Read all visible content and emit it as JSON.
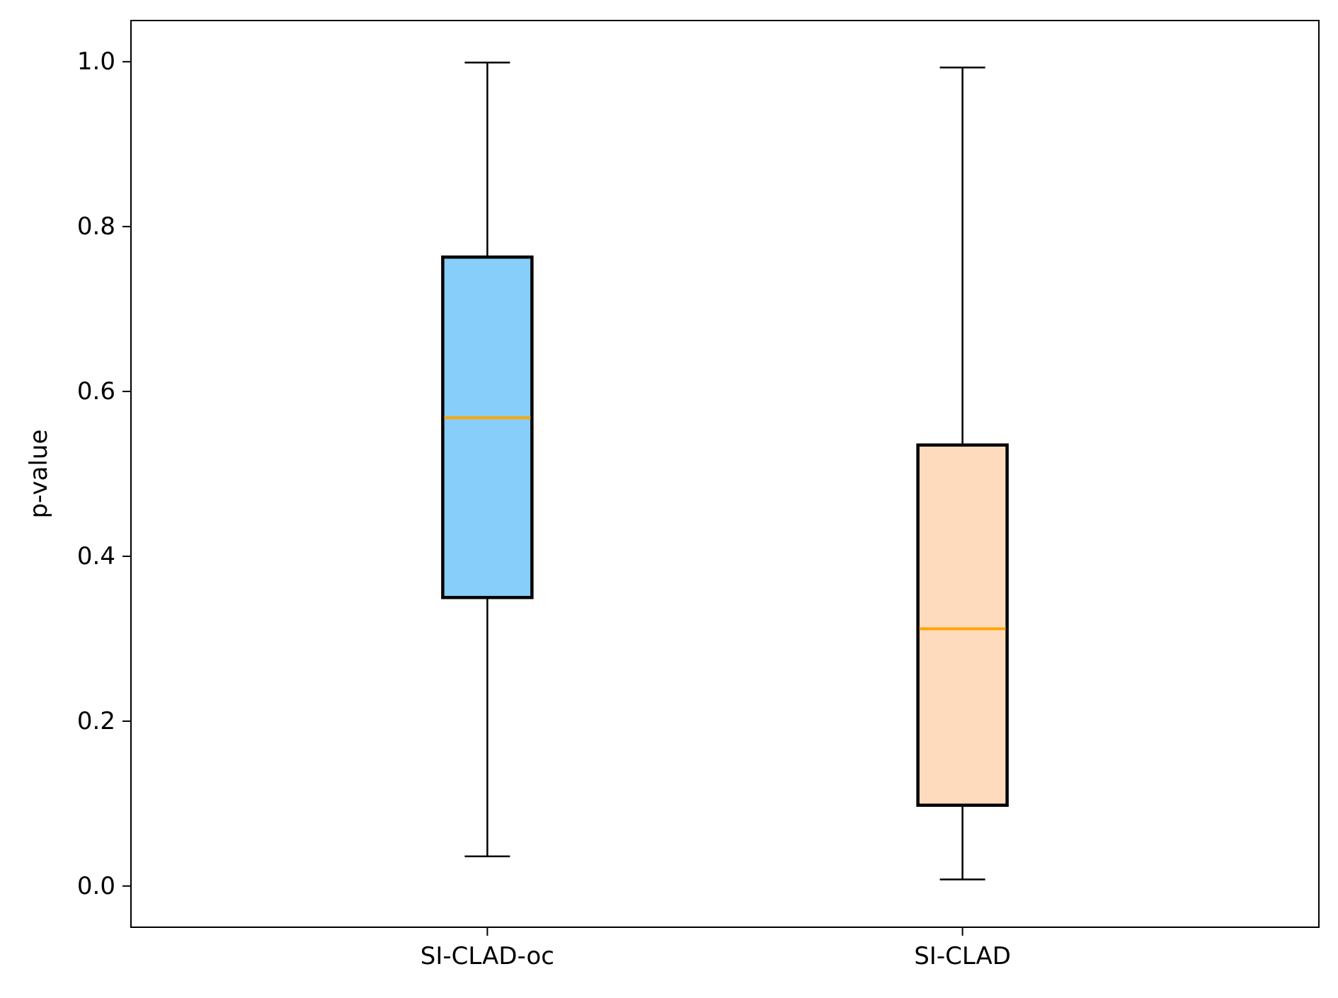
{
  "chart_data": {
    "type": "box",
    "title": "",
    "xlabel": "",
    "ylabel": "p-value",
    "ylim": [
      -0.05,
      1.05
    ],
    "yticks": [
      0.0,
      0.2,
      0.4,
      0.6,
      0.8,
      1.0
    ],
    "ytick_labels": [
      "0.0",
      "0.2",
      "0.4",
      "0.6",
      "0.8",
      "1.0"
    ],
    "categories": [
      "SI-CLAD-oc",
      "SI-CLAD"
    ],
    "series": [
      {
        "name": "SI-CLAD-oc",
        "whisker_low": 0.036,
        "q1": 0.35,
        "median": 0.568,
        "q3": 0.763,
        "whisker_high": 0.999,
        "fill_color": "#87cefa"
      },
      {
        "name": "SI-CLAD",
        "whisker_low": 0.008,
        "q1": 0.098,
        "median": 0.312,
        "q3": 0.535,
        "whisker_high": 0.993,
        "fill_color": "#fddbbc"
      }
    ],
    "median_color": "#ffa500",
    "grid": false,
    "legend": "none"
  }
}
